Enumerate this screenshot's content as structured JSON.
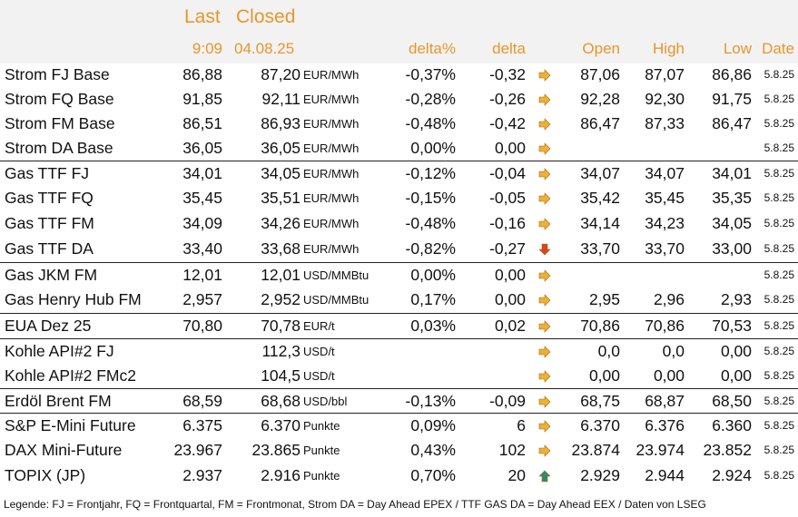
{
  "header": {
    "last_label": "Last",
    "closed_label": "Closed",
    "last_time": "9:09",
    "closed_date": "04.08.25",
    "delta_pct": "delta%",
    "delta": "delta",
    "open": "Open",
    "high": "High",
    "low": "Low",
    "date": "Date"
  },
  "colors": {
    "header_text": "#e8962a",
    "header_bg": "#f2f2f2",
    "arrow_side": "#f0b030",
    "arrow_down": "#d9431f",
    "arrow_up": "#2e8b6e"
  },
  "rows": [
    {
      "name": "Strom FJ Base",
      "last": "86,88",
      "closed": "87,20",
      "unit": "EUR/MWh",
      "dpct": "-0,37%",
      "delta": "-0,32",
      "trend": "side",
      "open": "87,06",
      "high": "87,07",
      "low": "86,86",
      "date": "5.8.25"
    },
    {
      "name": "Strom FQ Base",
      "last": "91,85",
      "closed": "92,11",
      "unit": "EUR/MWh",
      "dpct": "-0,28%",
      "delta": "-0,26",
      "trend": "side",
      "open": "92,28",
      "high": "92,30",
      "low": "91,75",
      "date": "5.8.25"
    },
    {
      "name": "Strom FM Base",
      "last": "86,51",
      "closed": "86,93",
      "unit": "EUR/MWh",
      "dpct": "-0,48%",
      "delta": "-0,42",
      "trend": "side",
      "open": "86,47",
      "high": "87,33",
      "low": "86,47",
      "date": "5.8.25"
    },
    {
      "name": "Strom DA Base",
      "last": "36,05",
      "closed": "36,05",
      "unit": "EUR/MWh",
      "dpct": "0,00%",
      "delta": "0,00",
      "trend": "side",
      "open": "",
      "high": "",
      "low": "",
      "date": "5.8.25"
    },
    {
      "name": "Gas TTF FJ",
      "last": "34,01",
      "closed": "34,05",
      "unit": "EUR/MWh",
      "dpct": "-0,12%",
      "delta": "-0,04",
      "trend": "side",
      "open": "34,07",
      "high": "34,07",
      "low": "34,01",
      "date": "5.8.25",
      "sep": true
    },
    {
      "name": "Gas TTF FQ",
      "last": "35,45",
      "closed": "35,51",
      "unit": "EUR/MWh",
      "dpct": "-0,15%",
      "delta": "-0,05",
      "trend": "side",
      "open": "35,42",
      "high": "35,45",
      "low": "35,35",
      "date": "5.8.25"
    },
    {
      "name": "Gas TTF FM",
      "last": "34,09",
      "closed": "34,26",
      "unit": "EUR/MWh",
      "dpct": "-0,48%",
      "delta": "-0,16",
      "trend": "side",
      "open": "34,14",
      "high": "34,23",
      "low": "34,05",
      "date": "5.8.25"
    },
    {
      "name": "Gas TTF DA",
      "last": "33,40",
      "closed": "33,68",
      "unit": "EUR/MWh",
      "dpct": "-0,82%",
      "delta": "-0,27",
      "trend": "down",
      "open": "33,70",
      "high": "33,70",
      "low": "33,00",
      "date": "5.8.25"
    },
    {
      "name": "Gas JKM FM",
      "last": "12,01",
      "closed": "12,01",
      "unit": "USD/MMBtu",
      "dpct": "0,00%",
      "delta": "0,00",
      "trend": "side",
      "open": "",
      "high": "",
      "low": "",
      "date": "5.8.25",
      "sep": true
    },
    {
      "name": "Gas Henry Hub FM",
      "last": "2,957",
      "closed": "2,952",
      "unit": "USD/MMBtu",
      "dpct": "0,17%",
      "delta": "0,00",
      "trend": "side",
      "open": "2,95",
      "high": "2,96",
      "low": "2,93",
      "date": "5.8.25"
    },
    {
      "name": "EUA Dez 25",
      "last": "70,80",
      "closed": "70,78",
      "unit": "EUR/t",
      "dpct": "0,03%",
      "delta": "0,02",
      "trend": "side",
      "open": "70,86",
      "high": "70,86",
      "low": "70,53",
      "date": "5.8.25",
      "sep": true
    },
    {
      "name": "Kohle API#2 FJ",
      "last": "",
      "closed": "112,3",
      "unit": "USD/t",
      "dpct": "",
      "delta": "",
      "trend": "side",
      "open": "0,0",
      "high": "0,0",
      "low": "0,00",
      "date": "5.8.25",
      "sep": true
    },
    {
      "name": "Kohle API#2 FMc2",
      "last": "",
      "closed": "104,5",
      "unit": "USD/t",
      "dpct": "",
      "delta": "",
      "trend": "side",
      "open": "0,00",
      "high": "0,00",
      "low": "0,00",
      "date": "5.8.25"
    },
    {
      "name": "Erdöl Brent FM",
      "last": "68,59",
      "closed": "68,68",
      "unit": "USD/bbl",
      "dpct": "-0,13%",
      "delta": "-0,09",
      "trend": "side",
      "open": "68,75",
      "high": "68,87",
      "low": "68,50",
      "date": "5.8.25",
      "sep": true
    },
    {
      "name": "S&P E-Mini Future",
      "last": "6.375",
      "closed": "6.370",
      "unit": "Punkte",
      "dpct": "0,09%",
      "delta": "6",
      "trend": "side",
      "open": "6.370",
      "high": "6.376",
      "low": "6.360",
      "date": "5.8.25",
      "sep": true
    },
    {
      "name": "DAX Mini-Future",
      "last": "23.967",
      "closed": "23.865",
      "unit": "Punkte",
      "dpct": "0,43%",
      "delta": "102",
      "trend": "side",
      "open": "23.874",
      "high": "23.974",
      "low": "23.852",
      "date": "5.8.25"
    },
    {
      "name": "TOPIX (JP)",
      "last": "2.937",
      "closed": "2.916",
      "unit": "Punkte",
      "dpct": "0,70%",
      "delta": "20",
      "trend": "up",
      "open": "2.929",
      "high": "2.944",
      "low": "2.924",
      "date": "5.8.25"
    }
  ],
  "legend": "Legende: FJ = Frontjahr, FQ = Frontquartal, FM = Frontmonat, Strom DA = Day Ahead EPEX / TTF GAS DA = Day Ahead EEX / Daten von LSEG"
}
